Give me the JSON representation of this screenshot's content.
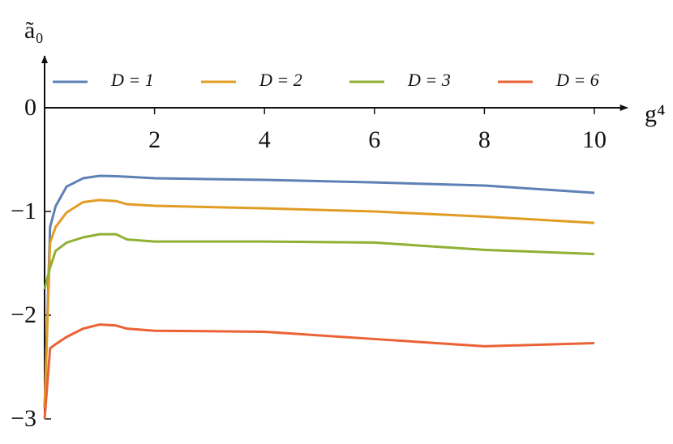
{
  "chart_data": {
    "type": "line",
    "x_label": "g⁴",
    "y_label": "ã₀",
    "x": [
      0,
      0.1,
      0.2,
      0.4,
      0.7,
      1.0,
      1.3,
      1.5,
      2,
      4,
      6,
      8,
      10
    ],
    "series": [
      {
        "name": "D = 1",
        "color": "#5e81b5",
        "values": [
          -2.9,
          -1.15,
          -0.95,
          -0.76,
          -0.68,
          -0.656,
          -0.66,
          -0.665,
          -0.68,
          -0.695,
          -0.72,
          -0.75,
          -0.82
        ]
      },
      {
        "name": "D = 2",
        "color": "#e19c24",
        "values": [
          -2.9,
          -1.3,
          -1.15,
          -1.01,
          -0.91,
          -0.89,
          -0.9,
          -0.93,
          -0.945,
          -0.97,
          -1.0,
          -1.05,
          -1.11
        ]
      },
      {
        "name": "D = 3",
        "color": "#8fb032",
        "values": [
          -1.75,
          -1.54,
          -1.38,
          -1.3,
          -1.25,
          -1.22,
          -1.22,
          -1.27,
          -1.29,
          -1.29,
          -1.3,
          -1.37,
          -1.41
        ]
      },
      {
        "name": "D = 6",
        "color": "#eb6235",
        "values": [
          -3,
          -2.32,
          -2.28,
          -2.21,
          -2.13,
          -2.09,
          -2.1,
          -2.13,
          -2.15,
          -2.16,
          -2.23,
          -2.3,
          -2.27
        ]
      }
    ],
    "xlim": [
      0,
      10.6
    ],
    "ylim": [
      -3,
      0.5
    ],
    "xticks": [
      2,
      4,
      6,
      8,
      10
    ],
    "yticks": [
      0,
      {
        "value": -1,
        "label": "−1"
      },
      {
        "value": -2,
        "label": "−2"
      },
      {
        "value": -3,
        "label": "−3"
      }
    ],
    "legend": "top"
  }
}
